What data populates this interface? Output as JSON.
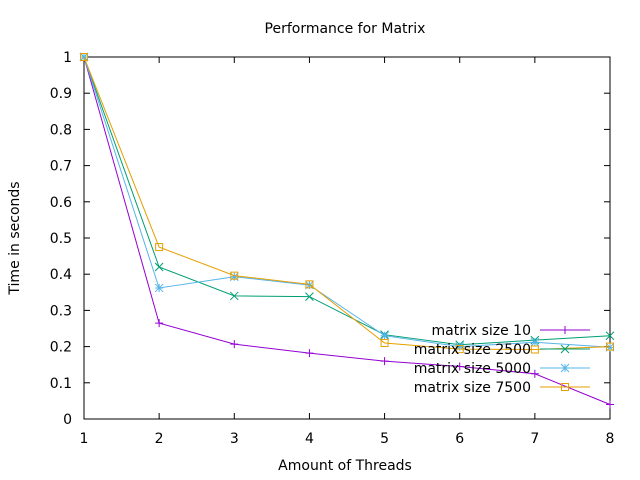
{
  "chart_data": {
    "type": "line",
    "title": "Performance for Matrix",
    "xlabel": "Amount of Threads",
    "ylabel": "Time in seconds",
    "xlim": [
      1,
      8
    ],
    "ylim": [
      0,
      1
    ],
    "x_ticks": [
      "1",
      "2",
      "3",
      "4",
      "5",
      "6",
      "7",
      "8"
    ],
    "y_ticks": [
      "0",
      "0.1",
      "0.2",
      "0.3",
      "0.4",
      "0.5",
      "0.6",
      "0.7",
      "0.8",
      "0.9",
      "1"
    ],
    "grid": false,
    "legend_position": "bottom-right",
    "x": [
      1,
      2,
      3,
      4,
      5,
      6,
      7,
      8
    ],
    "series": [
      {
        "name": "matrix size 10",
        "color": "#9400d3",
        "marker": "plus",
        "values": [
          1.0,
          0.265,
          0.207,
          0.182,
          0.16,
          0.145,
          0.125,
          0.04
        ]
      },
      {
        "name": "matrix size 2500",
        "color": "#009e73",
        "marker": "x",
        "values": [
          1.0,
          0.42,
          0.34,
          0.338,
          0.233,
          0.205,
          0.218,
          0.23
        ]
      },
      {
        "name": "matrix size 5000",
        "color": "#56b4e9",
        "marker": "star",
        "values": [
          1.0,
          0.362,
          0.393,
          0.37,
          0.23,
          0.2,
          0.212,
          0.198
        ]
      },
      {
        "name": "matrix size 7500",
        "color": "#e69f00",
        "marker": "square",
        "values": [
          1.0,
          0.475,
          0.396,
          0.372,
          0.21,
          0.193,
          0.192,
          0.2
        ]
      }
    ]
  }
}
